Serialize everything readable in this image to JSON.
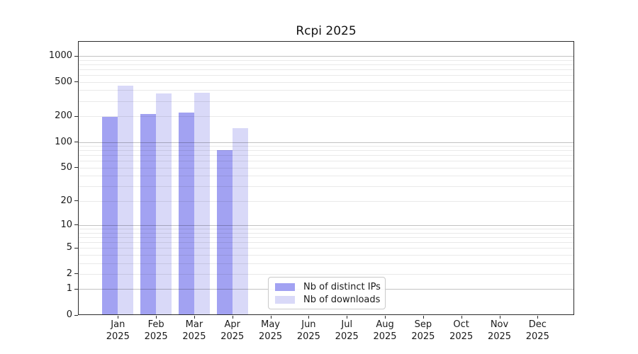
{
  "title": "Rcpi 2025",
  "legend": {
    "items": [
      {
        "label": "Nb of distinct IPs",
        "color": "#a2a2f2"
      },
      {
        "label": "Nb of downloads",
        "color": "#d9d9f8"
      }
    ]
  },
  "chart_data": {
    "type": "bar",
    "title": "Rcpi 2025",
    "categories": [
      "Jan",
      "Feb",
      "Mar",
      "Apr",
      "May",
      "Jun",
      "Jul",
      "Aug",
      "Sep",
      "Oct",
      "Nov",
      "Dec"
    ],
    "x_year": "2025",
    "series": [
      {
        "name": "Nb of distinct IPs",
        "color": "#a2a2f2",
        "values": [
          195,
          210,
          220,
          80,
          0,
          0,
          0,
          0,
          0,
          0,
          0,
          0
        ]
      },
      {
        "name": "Nb of downloads",
        "color": "#d9d9f8",
        "values": [
          450,
          365,
          375,
          145,
          0,
          0,
          0,
          0,
          0,
          0,
          0,
          0
        ]
      }
    ],
    "y_ticks": [
      0,
      1,
      2,
      5,
      10,
      20,
      50,
      100,
      200,
      500,
      1000
    ],
    "y_scale": "log10(1+x)",
    "ylim": [
      0,
      1500
    ],
    "grid": "horizontal, minor lines light, decade lines darker",
    "legend_position": "lower center"
  }
}
